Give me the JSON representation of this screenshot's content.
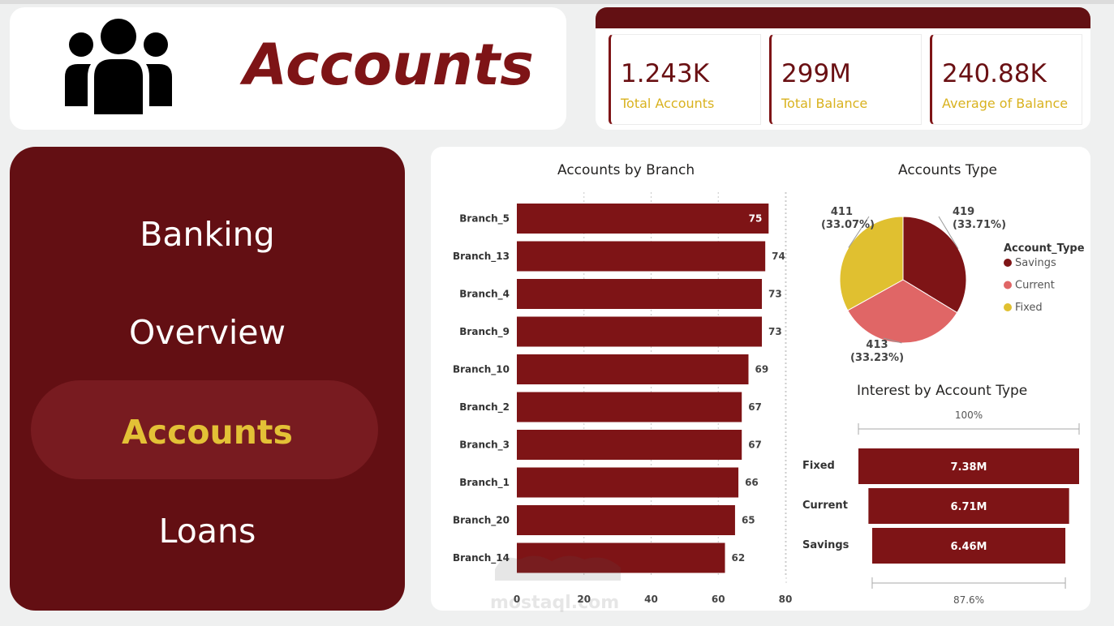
{
  "header": {
    "title": "Accounts",
    "icon": "users-group-icon"
  },
  "kpis": [
    {
      "value": "1.243K",
      "label": "Total Accounts"
    },
    {
      "value": "299M",
      "label": "Total Balance"
    },
    {
      "value": "240.88K",
      "label": "Average of Balance"
    }
  ],
  "nav": {
    "items": [
      {
        "label": "Banking",
        "active": false
      },
      {
        "label": "Overview",
        "active": false
      },
      {
        "label": "Accounts",
        "active": true
      },
      {
        "label": "Loans",
        "active": false
      }
    ]
  },
  "colors": {
    "primary": "#7e1416",
    "dark": "#630f13",
    "accent": "#e3c136",
    "current": "#e06666",
    "fixed": "#e0c030"
  },
  "chart_data": [
    {
      "type": "bar",
      "orientation": "horizontal",
      "title": "Accounts by Branch",
      "categories": [
        "Branch_5",
        "Branch_13",
        "Branch_4",
        "Branch_9",
        "Branch_10",
        "Branch_2",
        "Branch_3",
        "Branch_1",
        "Branch_20",
        "Branch_14"
      ],
      "values": [
        75,
        74,
        73,
        73,
        69,
        67,
        67,
        66,
        65,
        62
      ],
      "xlim": [
        0,
        80
      ],
      "xticks": [
        0,
        20,
        40,
        60,
        80
      ],
      "grid": true
    },
    {
      "type": "pie",
      "title": "Accounts Type",
      "legend_title": "Account_Type",
      "legend_position": "right",
      "series": [
        {
          "name": "Savings",
          "value": 419,
          "label": "419",
          "pct": "(33.71%)"
        },
        {
          "name": "Current",
          "value": 413,
          "label": "413",
          "pct": "(33.23%)"
        },
        {
          "name": "Fixed",
          "value": 411,
          "label": "411",
          "pct": "(33.07%)"
        }
      ]
    },
    {
      "type": "funnel",
      "title": "Interest by Account Type",
      "top_pct": "100%",
      "bottom_pct": "87.6%",
      "categories": [
        "Fixed",
        "Current",
        "Savings"
      ],
      "values": [
        7.38,
        6.71,
        6.46
      ],
      "labels": [
        "7.38M",
        "6.71M",
        "6.46M"
      ]
    }
  ],
  "watermark": {
    "text": "mostaql.com"
  }
}
